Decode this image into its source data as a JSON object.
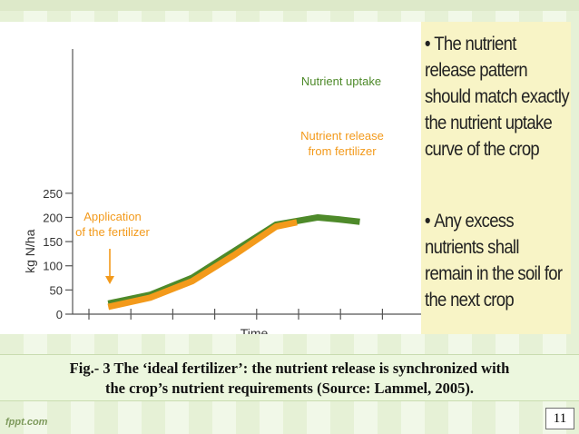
{
  "slide": {
    "bullets": [
      "The nutrient release pattern should match exactly the nutrient uptake curve of the crop",
      "Any excess nutrients shall remain in the soil for the next crop"
    ],
    "caption_line1": "Fig.- 3 The ‘ideal fertilizer’: the nutrient release is synchronized with",
    "caption_line2": "the crop’s  nutrient requirements  (Source: Lammel, 2005).",
    "page_number": "11",
    "watermark": "fppt.com"
  },
  "chart_data": {
    "type": "line",
    "xlabel": "Time",
    "ylabel": "kg N/ha",
    "ylim": [
      0,
      260
    ],
    "yticks": [
      0,
      50,
      100,
      150,
      200,
      250
    ],
    "x_tick_count": 9,
    "series": [
      {
        "name": "Nutrient uptake",
        "color": "#4e8a2a",
        "x": [
          0.85,
          1.85,
          2.85,
          3.85,
          4.85,
          5.85,
          6.35,
          6.85
        ],
        "y": [
          22,
          40,
          75,
          130,
          185,
          200,
          196,
          191
        ]
      },
      {
        "name": "Nutrient release from fertilizer",
        "color": "#f39a1b",
        "x": [
          0.85,
          1.85,
          2.85,
          3.85,
          4.85,
          5.35
        ],
        "y": [
          15,
          34,
          68,
          122,
          181,
          190
        ]
      }
    ],
    "annotations": [
      {
        "text_lines": [
          "Nutrient uptake"
        ],
        "color": "#4e8a2a"
      },
      {
        "text_lines": [
          "Nutrient release",
          "from fertilizer"
        ],
        "color": "#f39a1b"
      },
      {
        "text_lines": [
          "Application",
          "of the fertilizer"
        ],
        "color": "#f39a1b"
      }
    ]
  }
}
